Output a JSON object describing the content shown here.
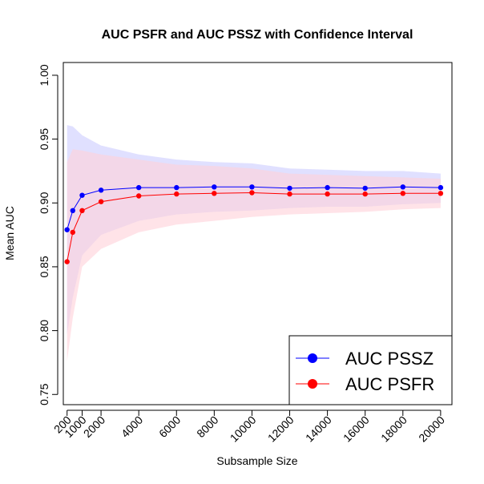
{
  "chart_data": {
    "type": "line",
    "title": "AUC PSFR and AUC PSSZ with Confidence Interval",
    "xlabel": "Subsample Size",
    "ylabel": "Mean AUC",
    "xlim": [
      0,
      20600
    ],
    "ylim": [
      0.742,
      1.01
    ],
    "x": [
      200,
      500,
      1000,
      2000,
      4000,
      6000,
      8000,
      10000,
      12000,
      14000,
      16000,
      18000,
      20000
    ],
    "x_ticks": [
      200,
      1000,
      2000,
      4000,
      6000,
      8000,
      10000,
      12000,
      14000,
      16000,
      18000,
      20000
    ],
    "x_tick_labels": [
      "200",
      "1000",
      "2000",
      "4000",
      "6000",
      "8000",
      "10000",
      "12000",
      "14000",
      "16000",
      "18000",
      "20000"
    ],
    "y_ticks": [
      0.75,
      0.8,
      0.85,
      0.9,
      0.95,
      1.0
    ],
    "y_tick_labels": [
      "0.75",
      "0.80",
      "0.85",
      "0.90",
      "0.95",
      "1.00"
    ],
    "series": [
      {
        "name": "AUC PSSZ",
        "color": "#0000ff",
        "band_color": "#ccccff",
        "values": [
          0.879,
          0.894,
          0.906,
          0.91,
          0.912,
          0.912,
          0.9125,
          0.9125,
          0.9115,
          0.912,
          0.9115,
          0.9125,
          0.912
        ],
        "lower": [
          0.797,
          0.826,
          0.859,
          0.875,
          0.886,
          0.891,
          0.893,
          0.894,
          0.896,
          0.897,
          0.897,
          0.899,
          0.9
        ],
        "upper": [
          0.961,
          0.96,
          0.953,
          0.945,
          0.938,
          0.934,
          0.932,
          0.931,
          0.927,
          0.926,
          0.925,
          0.925,
          0.923
        ]
      },
      {
        "name": "AUC PSFR",
        "color": "#ff0000",
        "band_color": "#ffd0d8",
        "values": [
          0.854,
          0.877,
          0.894,
          0.901,
          0.9055,
          0.907,
          0.9075,
          0.908,
          0.907,
          0.907,
          0.907,
          0.9075,
          0.9075
        ],
        "lower": [
          0.776,
          0.81,
          0.85,
          0.864,
          0.877,
          0.883,
          0.886,
          0.889,
          0.891,
          0.892,
          0.893,
          0.895,
          0.896
        ],
        "upper": [
          0.932,
          0.942,
          0.941,
          0.938,
          0.934,
          0.93,
          0.929,
          0.927,
          0.923,
          0.922,
          0.921,
          0.92,
          0.919
        ]
      }
    ],
    "legend": {
      "position": "bottom-right",
      "entries": [
        "AUC PSSZ",
        "AUC PSFR"
      ]
    }
  }
}
